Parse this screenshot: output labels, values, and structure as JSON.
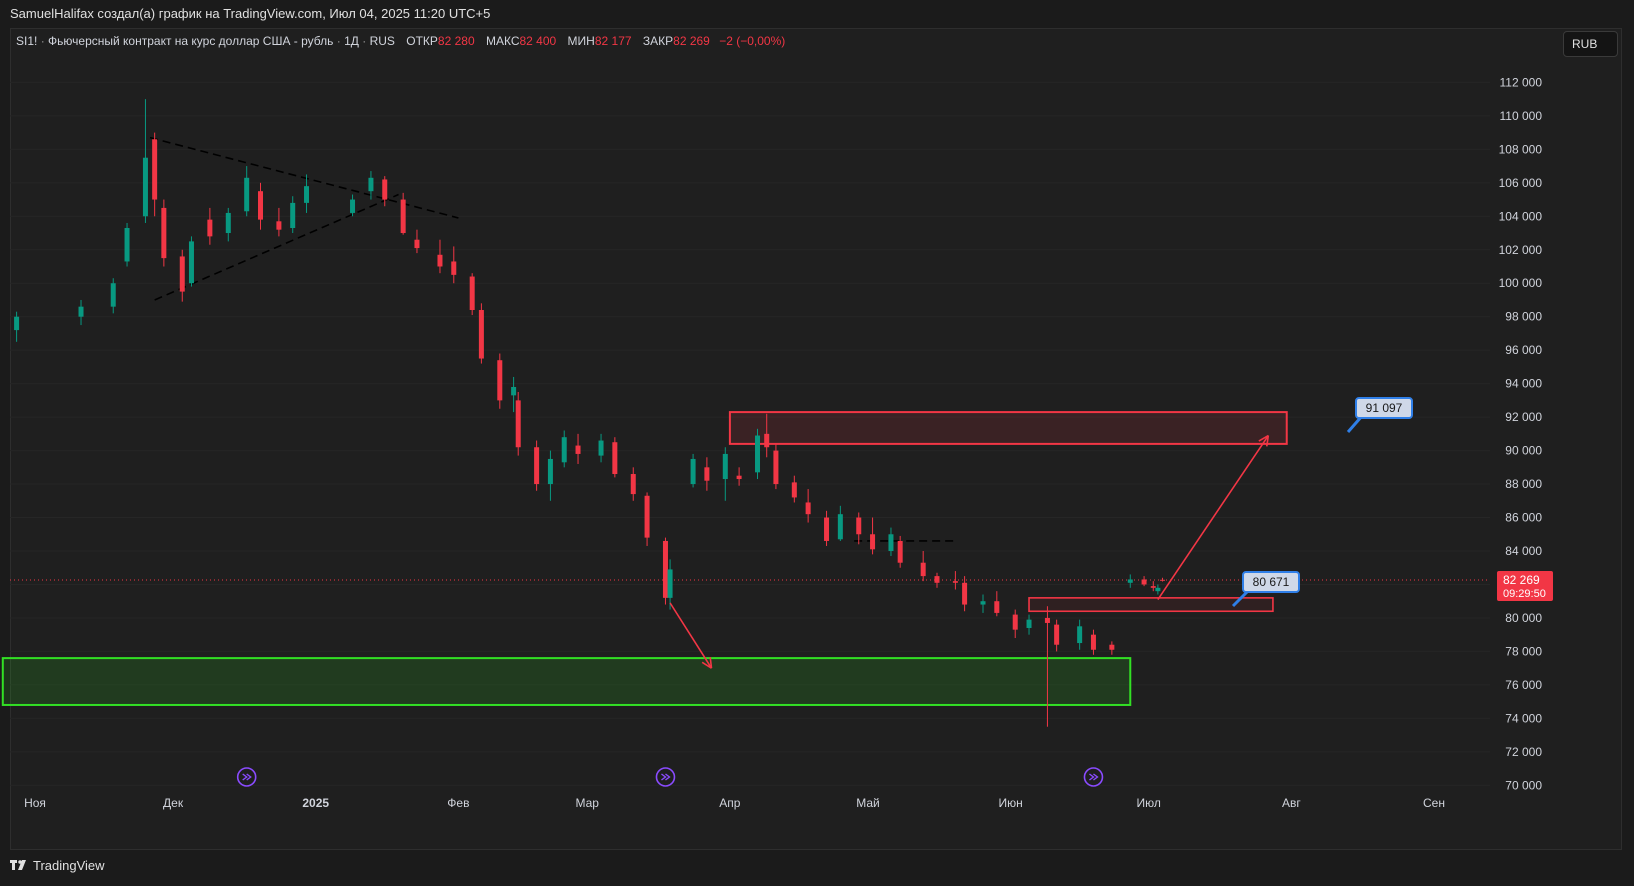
{
  "header": {
    "caption": "SamuelHalifax создал(а) график на TradingView.com, Июл 04, 2025 11:20 UTC+5"
  },
  "legend": {
    "symbol": "SI1!",
    "description": "Фьючерсный контракт на курс доллар США - рубль",
    "interval": "1Д",
    "exchange": "RUS",
    "open_label": "ОТКР",
    "open_value": "82 280",
    "high_label": "МАКС",
    "high_value": "82 400",
    "low_label": "МИН",
    "low_value": "82 177",
    "close_label": "ЗАКР",
    "close_value": "82 269",
    "change": "−2 (−0,00%)"
  },
  "currency_button": {
    "label": "RUB"
  },
  "price_scale": {
    "labels": [
      "112 000",
      "110 000",
      "108 000",
      "106 000",
      "104 000",
      "102 000",
      "100 000",
      "98 000",
      "96 000",
      "94 000",
      "92 000",
      "90 000",
      "88 000",
      "86 000",
      "84 000",
      "82 000",
      "80 000",
      "78 000",
      "76 000",
      "74 000",
      "72 000",
      "70 000"
    ],
    "values": [
      112000,
      110000,
      108000,
      106000,
      104000,
      102000,
      100000,
      98000,
      96000,
      94000,
      92000,
      90000,
      88000,
      86000,
      84000,
      82000,
      80000,
      78000,
      76000,
      74000,
      72000,
      70000
    ],
    "current_price_label": "82 269",
    "countdown": "09:29:50"
  },
  "time_axis": {
    "labels": [
      "Ноя",
      "Дек",
      "2025",
      "Фев",
      "Мар",
      "Апр",
      "Май",
      "Июн",
      "Июл",
      "Авг",
      "Сен"
    ],
    "bold": [
      false,
      false,
      true,
      false,
      false,
      false,
      false,
      false,
      false,
      false,
      false
    ]
  },
  "annotations": {
    "target_high_label": "91 097",
    "target_low_label": "80 671"
  },
  "footer": {
    "brand": "TradingView"
  },
  "colors": {
    "up": "#089981",
    "down": "#f23645",
    "supply_zone": "#f23645",
    "demand_zone": "#32e024",
    "callout_fill": "#cfd8e8",
    "callout_border": "#2f7fe8",
    "price_line": "#f23645",
    "event_icon": "#8a4bff"
  },
  "chart_data": {
    "type": "candlestick",
    "symbol": "SI1!",
    "ylim": [
      69000,
      113800
    ],
    "ohlc": [
      {
        "date": "2024-10-28",
        "o": 97200,
        "h": 98300,
        "l": 96500,
        "c": 98000
      },
      {
        "date": "2024-11-11",
        "o": 98000,
        "h": 99000,
        "l": 97500,
        "c": 98600
      },
      {
        "date": "2024-11-18",
        "o": 98600,
        "h": 100300,
        "l": 98200,
        "c": 100000
      },
      {
        "date": "2024-11-21",
        "o": 101300,
        "h": 103600,
        "l": 101000,
        "c": 103300
      },
      {
        "date": "2024-11-25",
        "o": 104000,
        "h": 111000,
        "l": 103600,
        "c": 107500
      },
      {
        "date": "2024-11-27",
        "o": 108600,
        "h": 109000,
        "l": 104000,
        "c": 105000
      },
      {
        "date": "2024-11-29",
        "o": 104500,
        "h": 105000,
        "l": 101000,
        "c": 101500
      },
      {
        "date": "2024-12-03",
        "o": 101600,
        "h": 102000,
        "l": 98900,
        "c": 99500
      },
      {
        "date": "2024-12-05",
        "o": 100000,
        "h": 102800,
        "l": 99800,
        "c": 102500
      },
      {
        "date": "2024-12-09",
        "o": 103800,
        "h": 104500,
        "l": 102300,
        "c": 102800
      },
      {
        "date": "2024-12-13",
        "o": 103000,
        "h": 104500,
        "l": 102500,
        "c": 104200
      },
      {
        "date": "2024-12-17",
        "o": 104300,
        "h": 107000,
        "l": 104000,
        "c": 106300
      },
      {
        "date": "2024-12-20",
        "o": 105500,
        "h": 106000,
        "l": 103200,
        "c": 103800
      },
      {
        "date": "2024-12-24",
        "o": 103700,
        "h": 104500,
        "l": 102800,
        "c": 103200
      },
      {
        "date": "2024-12-27",
        "o": 103300,
        "h": 105200,
        "l": 103000,
        "c": 104800
      },
      {
        "date": "2024-12-30",
        "o": 104800,
        "h": 106500,
        "l": 104200,
        "c": 105800
      },
      {
        "date": "2025-01-09",
        "o": 104200,
        "h": 105300,
        "l": 104000,
        "c": 105000
      },
      {
        "date": "2025-01-13",
        "o": 105500,
        "h": 106700,
        "l": 105000,
        "c": 106300
      },
      {
        "date": "2025-01-16",
        "o": 106200,
        "h": 106400,
        "l": 104600,
        "c": 105000
      },
      {
        "date": "2025-01-20",
        "o": 105000,
        "h": 105400,
        "l": 102900,
        "c": 103000
      },
      {
        "date": "2025-01-23",
        "o": 102600,
        "h": 103200,
        "l": 101800,
        "c": 102100
      },
      {
        "date": "2025-01-28",
        "o": 101700,
        "h": 102600,
        "l": 100600,
        "c": 101000
      },
      {
        "date": "2025-01-31",
        "o": 101300,
        "h": 102200,
        "l": 100000,
        "c": 100500
      },
      {
        "date": "2025-02-04",
        "o": 100400,
        "h": 100600,
        "l": 98100,
        "c": 98400
      },
      {
        "date": "2025-02-06",
        "o": 98400,
        "h": 98800,
        "l": 95200,
        "c": 95500
      },
      {
        "date": "2025-02-10",
        "o": 95400,
        "h": 95800,
        "l": 92500,
        "c": 93000
      },
      {
        "date": "2025-02-13",
        "o": 93300,
        "h": 94400,
        "l": 92300,
        "c": 93800
      },
      {
        "date": "2025-02-14",
        "o": 93000,
        "h": 93500,
        "l": 89700,
        "c": 90200
      },
      {
        "date": "2025-02-18",
        "o": 90200,
        "h": 90600,
        "l": 87600,
        "c": 88000
      },
      {
        "date": "2025-02-21",
        "o": 88000,
        "h": 90000,
        "l": 87000,
        "c": 89500
      },
      {
        "date": "2025-02-24",
        "o": 89300,
        "h": 91200,
        "l": 89000,
        "c": 90800
      },
      {
        "date": "2025-02-27",
        "o": 90300,
        "h": 91000,
        "l": 89200,
        "c": 89800
      },
      {
        "date": "2025-03-04",
        "o": 89700,
        "h": 91000,
        "l": 89300,
        "c": 90600
      },
      {
        "date": "2025-03-07",
        "o": 90500,
        "h": 90800,
        "l": 88400,
        "c": 88600
      },
      {
        "date": "2025-03-11",
        "o": 88600,
        "h": 89000,
        "l": 87000,
        "c": 87400
      },
      {
        "date": "2025-03-14",
        "o": 87300,
        "h": 87500,
        "l": 84300,
        "c": 84800
      },
      {
        "date": "2025-03-18",
        "o": 84600,
        "h": 84800,
        "l": 80800,
        "c": 81200
      },
      {
        "date": "2025-03-19",
        "o": 81200,
        "h": 83500,
        "l": 80500,
        "c": 82900
      },
      {
        "date": "2025-03-24",
        "o": 88000,
        "h": 89800,
        "l": 87800,
        "c": 89500
      },
      {
        "date": "2025-03-27",
        "o": 89000,
        "h": 89600,
        "l": 87600,
        "c": 88200
      },
      {
        "date": "2025-03-31",
        "o": 88300,
        "h": 90200,
        "l": 87000,
        "c": 89800
      },
      {
        "date": "2025-04-03",
        "o": 88500,
        "h": 89000,
        "l": 87900,
        "c": 88300
      },
      {
        "date": "2025-04-07",
        "o": 88700,
        "h": 91300,
        "l": 88300,
        "c": 90900
      },
      {
        "date": "2025-04-09",
        "o": 91000,
        "h": 92200,
        "l": 89600,
        "c": 90200
      },
      {
        "date": "2025-04-11",
        "o": 90000,
        "h": 90400,
        "l": 87700,
        "c": 88000
      },
      {
        "date": "2025-04-15",
        "o": 88100,
        "h": 88500,
        "l": 86900,
        "c": 87200
      },
      {
        "date": "2025-04-18",
        "o": 86900,
        "h": 87700,
        "l": 85700,
        "c": 86200
      },
      {
        "date": "2025-04-22",
        "o": 86000,
        "h": 86400,
        "l": 84300,
        "c": 84600
      },
      {
        "date": "2025-04-25",
        "o": 84700,
        "h": 86700,
        "l": 84600,
        "c": 86200
      },
      {
        "date": "2025-04-29",
        "o": 86000,
        "h": 86300,
        "l": 84400,
        "c": 85000
      },
      {
        "date": "2025-05-02",
        "o": 85000,
        "h": 86000,
        "l": 83800,
        "c": 84100
      },
      {
        "date": "2025-05-06",
        "o": 84000,
        "h": 85400,
        "l": 83700,
        "c": 85000
      },
      {
        "date": "2025-05-08",
        "o": 84600,
        "h": 84900,
        "l": 83000,
        "c": 83300
      },
      {
        "date": "2025-05-13",
        "o": 83300,
        "h": 84000,
        "l": 82200,
        "c": 82500
      },
      {
        "date": "2025-05-16",
        "o": 82500,
        "h": 82700,
        "l": 81800,
        "c": 82100
      },
      {
        "date": "2025-05-20",
        "o": 82200,
        "h": 82800,
        "l": 81700,
        "c": 82100
      },
      {
        "date": "2025-05-22",
        "o": 82100,
        "h": 82500,
        "l": 80400,
        "c": 80800
      },
      {
        "date": "2025-05-26",
        "o": 80800,
        "h": 81400,
        "l": 80300,
        "c": 81000
      },
      {
        "date": "2025-05-29",
        "o": 81000,
        "h": 81600,
        "l": 80100,
        "c": 80300
      },
      {
        "date": "2025-06-02",
        "o": 80200,
        "h": 80500,
        "l": 78800,
        "c": 79300
      },
      {
        "date": "2025-06-05",
        "o": 79400,
        "h": 80200,
        "l": 79000,
        "c": 79900
      },
      {
        "date": "2025-06-09",
        "o": 80000,
        "h": 80700,
        "l": 73500,
        "c": 79700
      },
      {
        "date": "2025-06-11",
        "o": 79600,
        "h": 79900,
        "l": 78000,
        "c": 78400
      },
      {
        "date": "2025-06-16",
        "o": 78500,
        "h": 79900,
        "l": 78100,
        "c": 79500
      },
      {
        "date": "2025-06-19",
        "o": 79000,
        "h": 79300,
        "l": 77800,
        "c": 78100
      },
      {
        "date": "2025-06-23",
        "o": 78400,
        "h": 78600,
        "l": 77800,
        "c": 78100
      },
      {
        "date": "2025-06-27",
        "o": 82100,
        "h": 82600,
        "l": 81800,
        "c": 82300
      },
      {
        "date": "2025-06-30",
        "o": 82300,
        "h": 82500,
        "l": 81900,
        "c": 82000
      },
      {
        "date": "2025-07-02",
        "o": 81900,
        "h": 82200,
        "l": 81600,
        "c": 81800
      },
      {
        "date": "2025-07-03",
        "o": 81600,
        "h": 82000,
        "l": 81400,
        "c": 81800
      },
      {
        "date": "2025-07-04",
        "o": 82280,
        "h": 82400,
        "l": 82177,
        "c": 82269
      }
    ],
    "drawings": {
      "supply_zone": {
        "from": "2025-04-01",
        "to": "2025-07-31",
        "top": 92300,
        "bottom": 90400
      },
      "demand_zone": {
        "from": "2024-10-25",
        "to": "2025-06-27",
        "top": 77600,
        "bottom": 74800
      },
      "small_zone": {
        "from": "2025-06-05",
        "to": "2025-07-28",
        "top": 81200,
        "bottom": 80400
      },
      "target_high": 91097,
      "target_low": 80671,
      "current_price": 82269
    }
  }
}
